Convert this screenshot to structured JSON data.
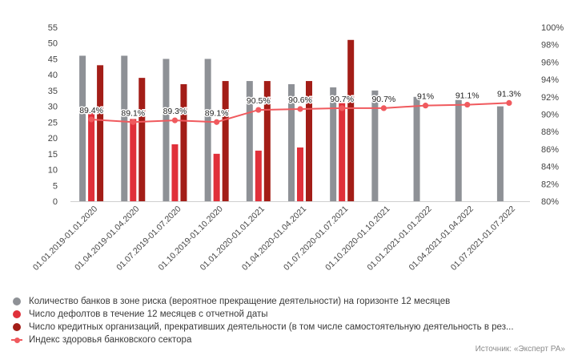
{
  "chart_data": {
    "type": "bar",
    "categories": [
      "01.01.2019-01.01.2020",
      "01.04.2019-01.04.2020",
      "01.07.2019-01.07.2020",
      "01.10.2019-01.10.2020",
      "01.01.2020-01.01.2021",
      "01.04.2020-01.04.2021",
      "01.07.2020-01.07.2021",
      "01.10.2020-01.10.2021",
      "01.01.2021-01.01.2022",
      "01.04.2021-01.04.2022",
      "01.07.2021-01.07.2022"
    ],
    "series": [
      {
        "name": "Количество банков в зоне риска (вероятное прекращение деятельности) на горизонте 12 месяцев",
        "type": "bar",
        "axis": "left",
        "color": "#8e9196",
        "values": [
          46,
          46,
          45,
          45,
          38,
          37,
          36,
          35,
          33,
          32,
          30
        ]
      },
      {
        "name": "Число дефолтов в течение 12 месяцев с отчетной даты",
        "type": "bar",
        "axis": "left",
        "color": "#e0303a",
        "values": [
          28,
          26,
          18,
          15,
          16,
          17,
          31,
          null,
          null,
          null,
          null
        ]
      },
      {
        "name": "Число кредитных организаций, прекративших деятельности (в том числе самостоятельную деятельность в рез...",
        "type": "bar",
        "axis": "left",
        "color": "#a31d17",
        "values": [
          43,
          39,
          37,
          38,
          38,
          38,
          51,
          null,
          null,
          null,
          null
        ]
      },
      {
        "name": "Индекс здоровья банковского сектора",
        "type": "line",
        "axis": "right",
        "color": "#f05a5e",
        "values": [
          89.4,
          89.1,
          89.3,
          89.1,
          90.5,
          90.6,
          90.7,
          90.7,
          91.0,
          91.1,
          91.3
        ],
        "labels": [
          "89.4%",
          "89.1%",
          "89.3%",
          "89.1%",
          "90.5%",
          "90.6%",
          "90.7%",
          "90.7%",
          "91%",
          "91.1%",
          "91.3%"
        ]
      }
    ],
    "y_left": {
      "min": 0,
      "max": 55,
      "step": 5
    },
    "y_right": {
      "min": 80,
      "max": 100,
      "step": 2,
      "suffix": "%"
    },
    "legend_position": "bottom-left",
    "grid": false
  },
  "source": "Источник: «Эксперт РА»"
}
